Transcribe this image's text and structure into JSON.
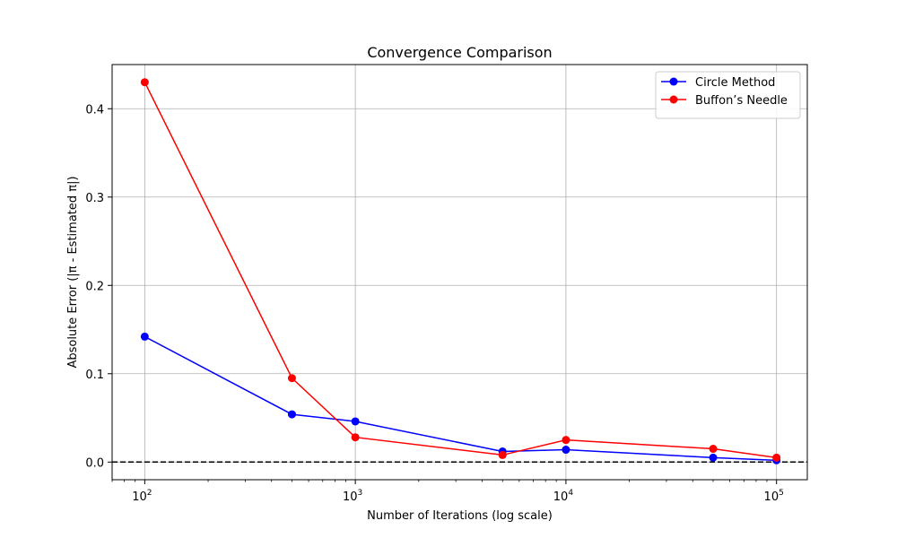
{
  "chart_data": {
    "type": "line",
    "title": "Convergence Comparison",
    "xlabel": "Number of Iterations (log scale)",
    "ylabel": "Absolute Error (|π - Estimated π|)",
    "x_scale": "log",
    "xlim": [
      70,
      140000
    ],
    "ylim": [
      -0.02,
      0.45
    ],
    "x": [
      100,
      500,
      1000,
      5000,
      10000,
      50000,
      100000
    ],
    "x_ticks": [
      {
        "value": 100,
        "base": "10",
        "exp": "2"
      },
      {
        "value": 1000,
        "base": "10",
        "exp": "3"
      },
      {
        "value": 10000,
        "base": "10",
        "exp": "4"
      },
      {
        "value": 100000,
        "base": "10",
        "exp": "5"
      }
    ],
    "y_ticks": [
      {
        "value": 0.0,
        "label": "0.0"
      },
      {
        "value": 0.1,
        "label": "0.1"
      },
      {
        "value": 0.2,
        "label": "0.2"
      },
      {
        "value": 0.3,
        "label": "0.3"
      },
      {
        "value": 0.4,
        "label": "0.4"
      }
    ],
    "grid": true,
    "reference_line": {
      "y": 0,
      "style": "dashed",
      "color": "#000000"
    },
    "legend_position": "top-right",
    "series": [
      {
        "name": "Circle Method",
        "color": "#0000ff",
        "values": [
          0.142,
          0.054,
          0.046,
          0.012,
          0.014,
          0.005,
          0.002
        ]
      },
      {
        "name": "Buffon’s Needle",
        "color": "#ff0000",
        "values": [
          0.43,
          0.095,
          0.028,
          0.008,
          0.025,
          0.015,
          0.005
        ]
      }
    ]
  }
}
